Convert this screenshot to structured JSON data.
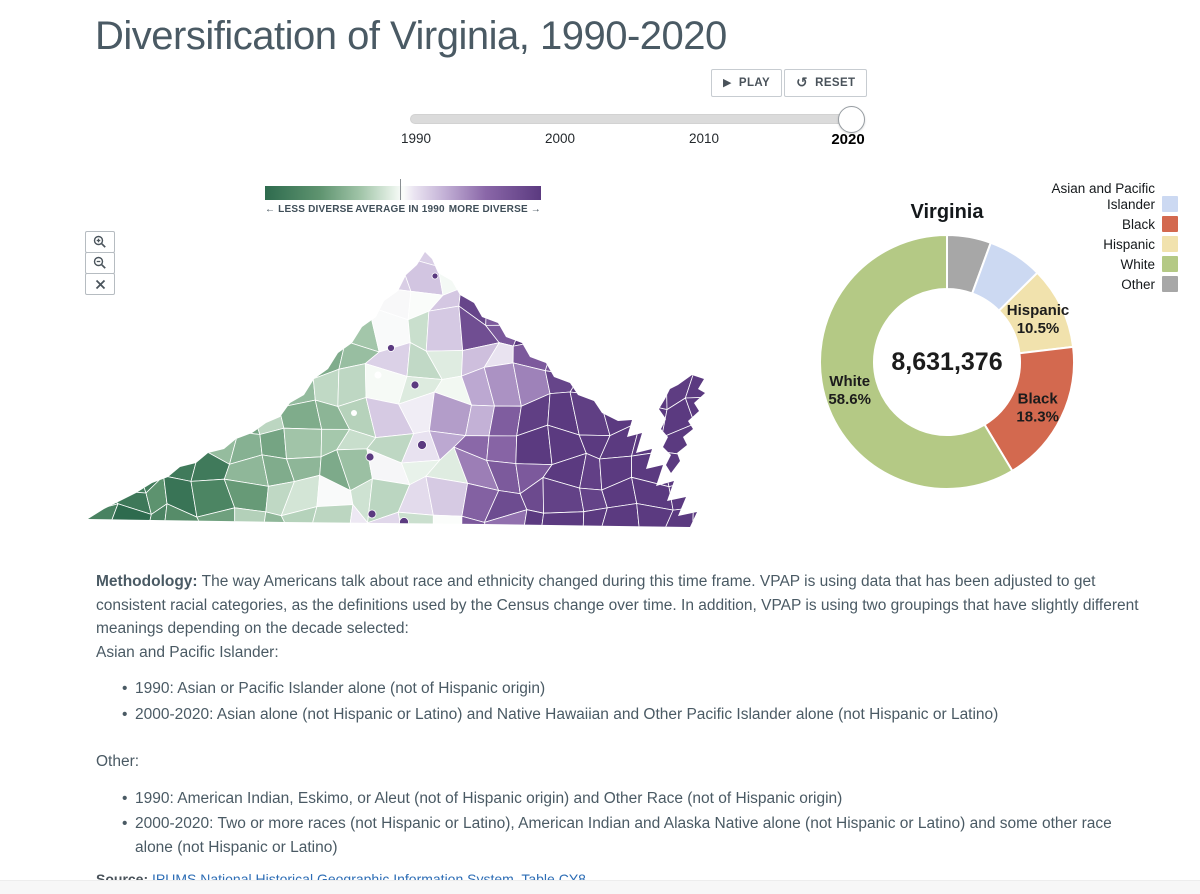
{
  "page": {
    "title": "Diversification of Virginia, 1990-2020"
  },
  "controls": {
    "play_label": "PLAY",
    "play_icon": "▶",
    "reset_label": "RESET",
    "reset_icon": "↺"
  },
  "timeline": {
    "ticks": [
      "1990",
      "2000",
      "2010",
      "2020"
    ],
    "selected": "2020"
  },
  "diverging_legend": {
    "less_label": "← LESS DIVERSE",
    "avg_label": "AVERAGE IN 1990",
    "more_label": "MORE DIVERSE →",
    "tick_position_pct": 49
  },
  "map": {
    "type": "choropleth",
    "region": "Virginia counties",
    "color_scale": [
      {
        "pos": -1,
        "color": "#2e6b4e"
      },
      {
        "pos": -0.6,
        "color": "#5f9470"
      },
      {
        "pos": -0.3,
        "color": "#a3c6aa"
      },
      {
        "pos": -0.08,
        "color": "#e3efe5"
      },
      {
        "pos": 0,
        "color": "#fbfdfb"
      },
      {
        "pos": 0.08,
        "color": "#eae4f1"
      },
      {
        "pos": 0.3,
        "color": "#c3b1d6"
      },
      {
        "pos": 0.6,
        "color": "#8a67a8"
      },
      {
        "pos": 1,
        "color": "#5b3a80"
      }
    ],
    "controls": {
      "zoom_in": "magnifier-plus",
      "zoom_out": "magnifier-minus",
      "close": "x"
    }
  },
  "chart_data": {
    "type": "donut",
    "title": "Virginia",
    "center_total": "8,631,376",
    "legend_order": [
      "Asian and Pacific Islander",
      "Black",
      "Hispanic",
      "White",
      "Other"
    ],
    "series": [
      {
        "name": "Other",
        "value": 5.6,
        "color": "#a7a7a7",
        "label_visible": false
      },
      {
        "name": "Asian and Pacific Islander",
        "value": 7.0,
        "color": "#ccd9f2",
        "label_visible": false
      },
      {
        "name": "Hispanic",
        "value": 10.5,
        "color": "#f1e2ad",
        "label_visible": true
      },
      {
        "name": "Black",
        "value": 18.3,
        "color": "#d3694f",
        "label_visible": true
      },
      {
        "name": "White",
        "value": 58.6,
        "color": "#b4c985",
        "label_visible": true
      }
    ],
    "labeled_values": {
      "White": "58.6%",
      "Black": "18.3%",
      "Hispanic": "10.5%"
    }
  },
  "methodology": {
    "heading": "Methodology:",
    "intro": "The way Americans talk about race and ethnicity changed during this time frame. VPAP is using data that has been adjusted to get consistent racial categories, as the definitions used by the Census change over time. In addition, VPAP is using two groupings that have slightly different meanings depending on the decade selected:",
    "groups": [
      {
        "label": "Asian and Pacific Islander:",
        "items": [
          "1990: Asian or Pacific Islander alone (not of Hispanic origin)",
          "2000-2020: Asian alone (not Hispanic or Latino) and Native Hawaiian and Other Pacific Islander alone (not Hispanic or Latino)"
        ]
      },
      {
        "label": "Other:",
        "items": [
          "1990: American Indian, Eskimo, or Aleut (not of Hispanic origin) and Other Race (not of Hispanic origin)",
          "2000-2020: Two or more races (not Hispanic or Latino), American Indian and Alaska Native alone (not Hispanic or Latino) and some other race alone (not Hispanic or Latino)"
        ]
      }
    ]
  },
  "source": {
    "prefix": "Source:",
    "link_text": "IPUMS National Historical Geographic Information System, Table CY8"
  }
}
